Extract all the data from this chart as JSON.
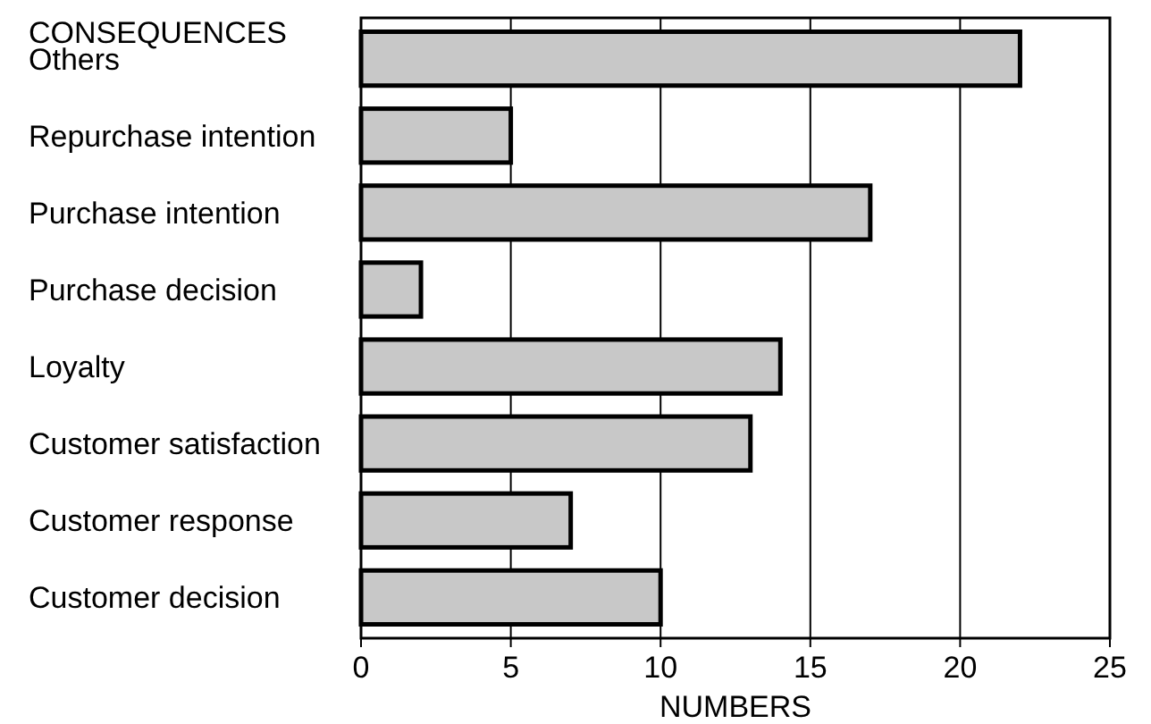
{
  "chart_data": {
    "type": "bar",
    "orientation": "horizontal",
    "ylabel": "CONSEQUENCES",
    "xlabel": "NUMBERS",
    "categories": [
      "Others",
      "Repurchase intention",
      "Purchase intention",
      "Purchase decision",
      "Loyalty",
      "Customer satisfaction",
      "Customer response",
      "Customer decision"
    ],
    "values": [
      22,
      5,
      17,
      2,
      14,
      13,
      7,
      10
    ],
    "color": "#c8c8c8",
    "xlim": [
      0,
      25
    ],
    "xticks": [
      0,
      5,
      10,
      15,
      20,
      25
    ],
    "grid": "x"
  }
}
